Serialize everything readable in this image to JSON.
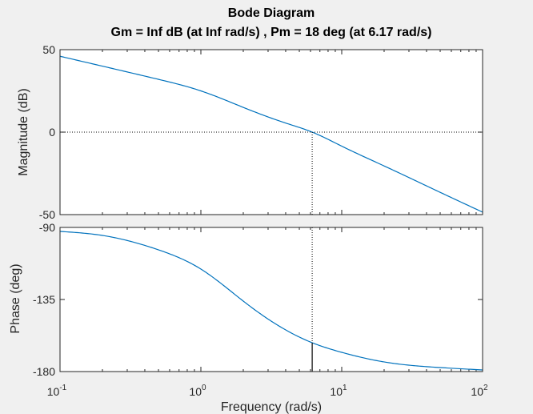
{
  "chart_data": {
    "type": "line",
    "title": "Bode Diagram",
    "subtitle": "Gm = Inf dB (at Inf rad/s) ,  Pm = 18 deg (at 6.17 rad/s)",
    "xlabel": "Frequency  (rad/s)",
    "x_scale": "log",
    "xlim": [
      0.1,
      100
    ],
    "x_ticks": [
      {
        "base": "10",
        "exp": "-1"
      },
      {
        "base": "10",
        "exp": "0"
      },
      {
        "base": "10",
        "exp": "1"
      },
      {
        "base": "10",
        "exp": "2"
      }
    ],
    "line_color": "#0072bd",
    "panels": [
      {
        "name": "magnitude",
        "ylabel": "Magnitude (dB)",
        "ylim": [
          -50,
          50
        ],
        "y_ticks": [
          "50",
          "0",
          "-50"
        ],
        "reference_line": 0,
        "points": [
          [
            0.1,
            46.0
          ],
          [
            0.2,
            40.0
          ],
          [
            0.5,
            32.0
          ],
          [
            1,
            25.0
          ],
          [
            2,
            15.0
          ],
          [
            4,
            5.5
          ],
          [
            6.17,
            0
          ],
          [
            10,
            -8.5
          ],
          [
            20,
            -20.5
          ],
          [
            50,
            -36.5
          ],
          [
            100,
            -48.5
          ]
        ]
      },
      {
        "name": "phase",
        "ylabel": "Phase (deg)",
        "ylim": [
          -180,
          -90
        ],
        "y_ticks": [
          "-90",
          "-135",
          "-180"
        ],
        "reference_line": -180,
        "points": [
          [
            0.1,
            -92.5
          ],
          [
            0.2,
            -95
          ],
          [
            0.5,
            -104
          ],
          [
            1,
            -116
          ],
          [
            2,
            -136
          ],
          [
            4,
            -154
          ],
          [
            6.17,
            -162
          ],
          [
            10,
            -168
          ],
          [
            20,
            -174
          ],
          [
            50,
            -177.5
          ],
          [
            100,
            -179
          ]
        ]
      }
    ],
    "phase_margin": {
      "frequency": 6.17,
      "magnitude": 0,
      "phase": -162
    }
  }
}
